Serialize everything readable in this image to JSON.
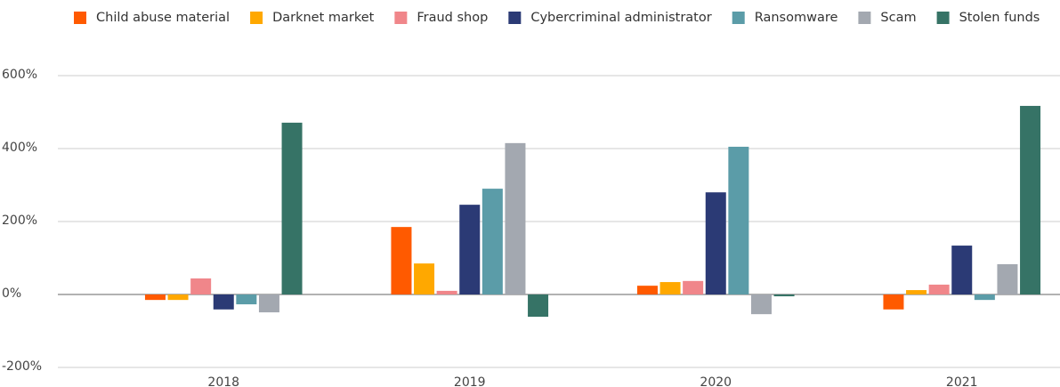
{
  "chart_data": {
    "type": "bar",
    "categories": [
      "2018",
      "2019",
      "2020",
      "2021"
    ],
    "series": [
      {
        "name": "Child abuse material",
        "color": "#ff5a00",
        "values": [
          -15,
          185,
          24,
          -41
        ]
      },
      {
        "name": "Darknet market",
        "color": "#ffa800",
        "values": [
          -15,
          85,
          34,
          12
        ]
      },
      {
        "name": "Fraud shop",
        "color": "#f0868a",
        "values": [
          44,
          10,
          37,
          27
        ]
      },
      {
        "name": "Cybercriminal administrator",
        "color": "#2b3a75",
        "values": [
          -41,
          246,
          280,
          134
        ]
      },
      {
        "name": "Ransomware",
        "color": "#5b9ca8",
        "values": [
          -27,
          290,
          405,
          -15
        ]
      },
      {
        "name": "Scam",
        "color": "#a3a8b0",
        "values": [
          -49,
          415,
          -54,
          83
        ]
      },
      {
        "name": "Stolen funds",
        "color": "#367366",
        "values": [
          471,
          -61,
          -5,
          517
        ]
      }
    ],
    "ylim": [
      -200,
      600
    ],
    "yticks": [
      {
        "value": -200,
        "label": "-200%"
      },
      {
        "value": 0,
        "label": "0%"
      },
      {
        "value": 200,
        "label": "200%"
      },
      {
        "value": 400,
        "label": "400%"
      },
      {
        "value": 600,
        "label": "600%"
      }
    ],
    "grid": true,
    "legend": "top"
  }
}
